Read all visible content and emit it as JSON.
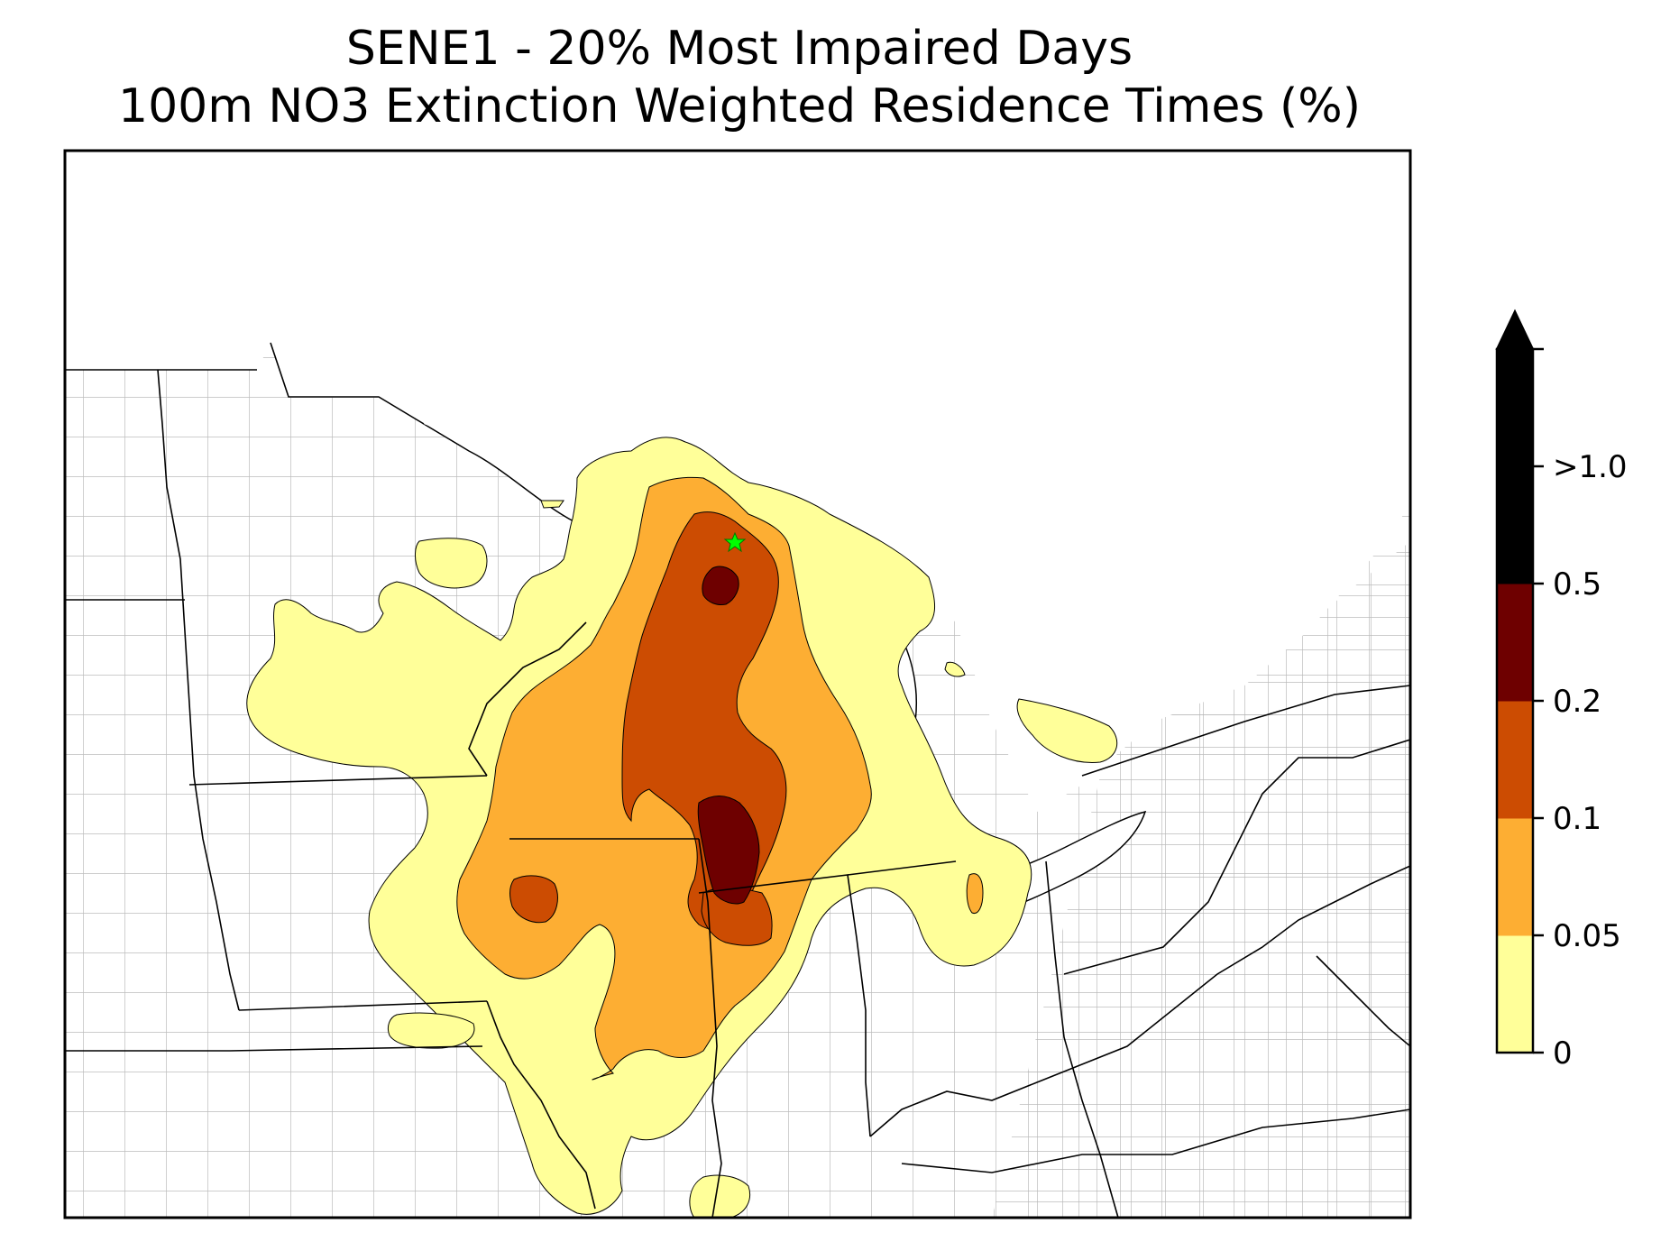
{
  "title": {
    "line1": "SENE1 - 20% Most Impaired Days",
    "line2": "100m NO3 Extinction Weighted Residence Times (%)"
  },
  "colorbar": {
    "levels": [
      {
        "label": "0",
        "value": 0,
        "color": "#ffffff"
      },
      {
        "label": "0.05",
        "value": 0.05,
        "color": "#ffff99"
      },
      {
        "label": "0.1",
        "value": 0.1,
        "color": "#fdae33"
      },
      {
        "label": "0.2",
        "value": 0.2,
        "color": "#cc4c02"
      },
      {
        "label": "0.5",
        "value": 0.5,
        "color": "#6e0000"
      },
      {
        "label": ">1.0",
        "value": 1.0,
        "color": "#000000"
      }
    ],
    "extend": "max"
  },
  "site_marker": {
    "color": "#00ff00",
    "symbol": "star"
  },
  "colors": {
    "boundary": "#000000",
    "county": "#aaaaaa",
    "contour_edge": "#000000"
  }
}
